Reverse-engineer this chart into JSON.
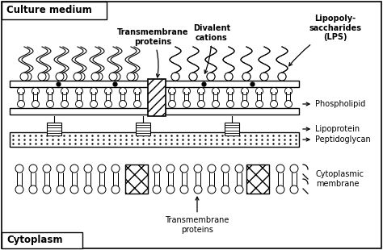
{
  "bg_color": "#ffffff",
  "title_culture": "Culture medium",
  "title_cytoplasm": "Cytoplasm",
  "label_transmembrane_outer": "Transmembrane\nproteins",
  "label_divalent": "Divalent\ncations",
  "label_lps": "Lipopoly-\nsaccharides\n(LPS)",
  "label_phospholipid": "Phospholipid",
  "label_lipoprotein": "Lipoprotein",
  "label_peptidoglycan": "Peptidoglycan",
  "label_cytoplasmic": "Cytoplasmic\nmembrane",
  "label_transmembrane_inner": "Transmembrane\nproteins",
  "fig_width": 4.74,
  "fig_height": 3.1,
  "dpi": 100
}
